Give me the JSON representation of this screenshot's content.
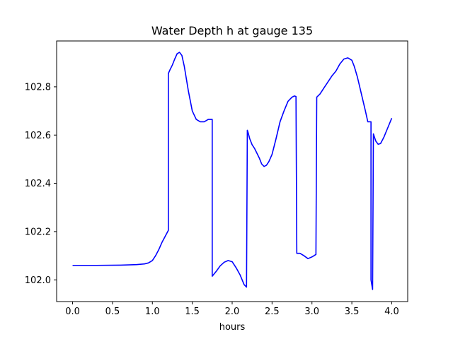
{
  "chart_data": {
    "type": "line",
    "title": "Water Depth h at gauge 135",
    "xlabel": "hours",
    "ylabel": "",
    "xlim": [
      -0.2,
      4.2
    ],
    "ylim": [
      101.91,
      102.99
    ],
    "xticks": [
      0.0,
      0.5,
      1.0,
      1.5,
      2.0,
      2.5,
      3.0,
      3.5,
      4.0
    ],
    "xtick_labels": [
      "0.0",
      "0.5",
      "1.0",
      "1.5",
      "2.0",
      "2.5",
      "3.0",
      "3.5",
      "4.0"
    ],
    "yticks": [
      102.0,
      102.2,
      102.4,
      102.6,
      102.8
    ],
    "ytick_labels": [
      "102.0",
      "102.2",
      "102.4",
      "102.6",
      "102.8"
    ],
    "grid": false,
    "series": [
      {
        "color": "#0000ff",
        "x": [
          0.0,
          0.3,
          0.6,
          0.8,
          0.9,
          0.95,
          1.0,
          1.04,
          1.08,
          1.12,
          1.16,
          1.2,
          1.2,
          1.22,
          1.25,
          1.28,
          1.31,
          1.34,
          1.37,
          1.4,
          1.45,
          1.5,
          1.55,
          1.6,
          1.65,
          1.7,
          1.75,
          1.75,
          1.8,
          1.85,
          1.9,
          1.95,
          2.0,
          2.05,
          2.1,
          2.15,
          2.18,
          2.19,
          2.2,
          2.22,
          2.25,
          2.28,
          2.31,
          2.34,
          2.37,
          2.4,
          2.43,
          2.46,
          2.5,
          2.55,
          2.6,
          2.65,
          2.7,
          2.75,
          2.78,
          2.8,
          2.81,
          2.85,
          2.9,
          2.95,
          3.0,
          3.05,
          3.06,
          3.1,
          3.15,
          3.2,
          3.25,
          3.3,
          3.35,
          3.4,
          3.45,
          3.5,
          3.53,
          3.57,
          3.62,
          3.67,
          3.7,
          3.74,
          3.74,
          3.76,
          3.77,
          3.78,
          3.8,
          3.83,
          3.86,
          3.9,
          3.95,
          4.0
        ],
        "y": [
          102.06,
          102.06,
          102.061,
          102.063,
          102.066,
          102.07,
          102.08,
          102.1,
          102.125,
          102.155,
          102.18,
          102.205,
          102.855,
          102.87,
          102.89,
          102.915,
          102.937,
          102.943,
          102.93,
          102.885,
          102.785,
          102.7,
          102.665,
          102.655,
          102.655,
          102.665,
          102.665,
          102.015,
          102.035,
          102.058,
          102.073,
          102.08,
          102.075,
          102.05,
          102.02,
          101.98,
          101.97,
          102.62,
          102.61,
          102.585,
          102.56,
          102.545,
          102.525,
          102.505,
          102.48,
          102.47,
          102.475,
          102.49,
          102.52,
          102.585,
          102.655,
          102.7,
          102.74,
          102.757,
          102.762,
          102.76,
          102.11,
          102.11,
          102.1,
          102.088,
          102.095,
          102.105,
          102.757,
          102.77,
          102.795,
          102.82,
          102.845,
          102.865,
          102.895,
          102.915,
          102.92,
          102.91,
          102.885,
          102.84,
          102.77,
          102.7,
          102.655,
          102.655,
          102.0,
          101.96,
          102.605,
          102.595,
          102.575,
          102.562,
          102.565,
          102.59,
          102.63,
          102.67
        ]
      }
    ]
  }
}
